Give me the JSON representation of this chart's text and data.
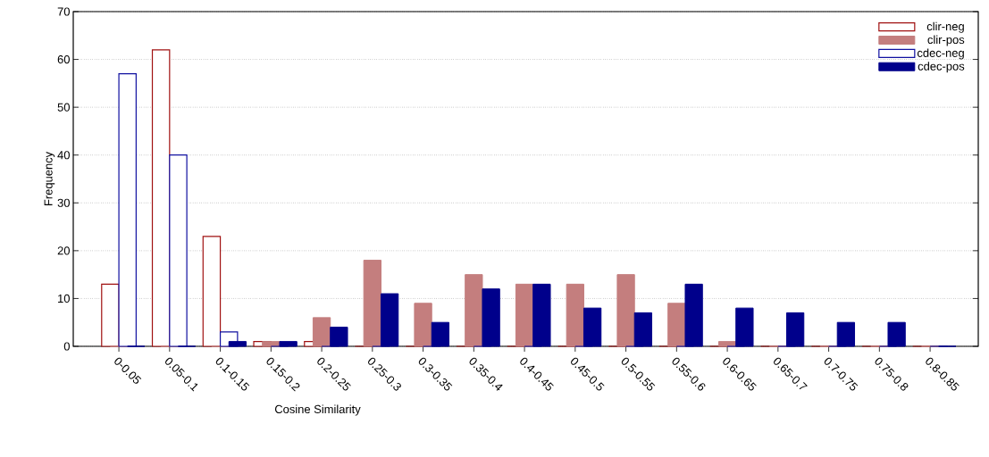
{
  "chart_data": {
    "type": "bar",
    "xlabel": "Cosine Similarity",
    "ylabel": "Frequency",
    "categories": [
      "0-0.05",
      "0.05-0.1",
      "0.1-0.15",
      "0.15-0.2",
      "0.2-0.25",
      "0.25-0.3",
      "0.3-0.35",
      "0.35-0.4",
      "0.4-0.45",
      "0.45-0.5",
      "0.5-0.55",
      "0.55-0.6",
      "0.6-0.65",
      "0.65-0.7",
      "0.7-0.75",
      "0.75-0.8",
      "0.8-0.85"
    ],
    "series": [
      {
        "name": "clir-neg",
        "color": "#a01010",
        "values": [
          13,
          62,
          23,
          1,
          1,
          0,
          0,
          0,
          0,
          0,
          0,
          0,
          0,
          0,
          0,
          0,
          0
        ]
      },
      {
        "name": "clir-pos",
        "color": "#c47e7e",
        "values": [
          0,
          0,
          0,
          1,
          6,
          18,
          9,
          15,
          13,
          13,
          15,
          9,
          1,
          0,
          0,
          0,
          0
        ]
      },
      {
        "name": "cdec-neg",
        "color": "#1010a0",
        "values": [
          57,
          40,
          3,
          0,
          0,
          0,
          0,
          0,
          0,
          0,
          0,
          0,
          0,
          0,
          0,
          0,
          0
        ]
      },
      {
        "name": "cdec-pos",
        "color": "#00008b",
        "values": [
          0,
          0,
          1,
          1,
          4,
          11,
          5,
          12,
          13,
          8,
          7,
          13,
          8,
          7,
          5,
          5,
          0
        ]
      }
    ],
    "ylim": [
      0,
      70
    ],
    "yticks": [
      0,
      10,
      20,
      30,
      40,
      50,
      60,
      70
    ],
    "grid": "y",
    "legend": "top right"
  }
}
